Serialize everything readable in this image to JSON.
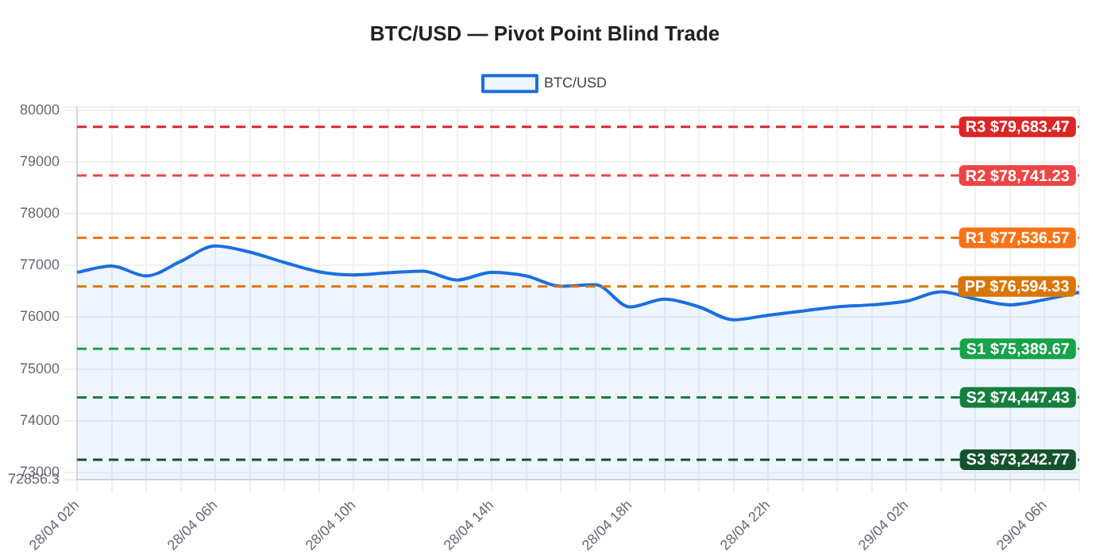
{
  "chart_data": {
    "type": "area",
    "title": "BTC/USD — Pivot Point Blind Trade",
    "categories": [
      "28/04 02h",
      null,
      null,
      null,
      "28/04 06h",
      null,
      null,
      null,
      "28/04 10h",
      null,
      null,
      null,
      "28/04 14h",
      null,
      null,
      null,
      "28/04 18h",
      null,
      null,
      null,
      "28/04 22h",
      null,
      null,
      null,
      "29/04 02h",
      null,
      null,
      null,
      "29/04 06h",
      null
    ],
    "series": [
      {
        "name": "BTC/USD",
        "color": "#1a6fe0",
        "values": [
          76870,
          76990,
          76800,
          77080,
          77380,
          77260,
          77060,
          76880,
          76820,
          76860,
          76890,
          76720,
          76870,
          76800,
          76600,
          76630,
          76200,
          76350,
          76200,
          75950,
          76040,
          76120,
          76200,
          76240,
          76310,
          76490,
          76350,
          76240,
          76340,
          76480
        ]
      }
    ],
    "ylim": [
      72856.3,
      80060.9
    ],
    "yticks": [
      72856.3,
      73000,
      74000,
      75000,
      76000,
      77000,
      78000,
      79000,
      80000,
      {
        "value": 80060.9,
        "label": null
      }
    ],
    "ref_lines": [
      {
        "axis": "y",
        "value": 79683.47,
        "label": "R3 $79,683.47",
        "color": "#dc2626",
        "line_style": "dashed"
      },
      {
        "axis": "y",
        "value": 78741.23,
        "label": "R2 $78,741.23",
        "color": "#ef4444",
        "line_style": "dashed"
      },
      {
        "axis": "y",
        "value": 77536.57,
        "label": "R1 $77,536.57",
        "color": "#f97316",
        "line_style": "dashed"
      },
      {
        "axis": "y",
        "value": 76594.33,
        "label": "PP $76,594.33",
        "color": "#d97706",
        "line_style": "dashed"
      },
      {
        "axis": "y",
        "value": 75389.67,
        "label": "S1 $75,389.67",
        "color": "#16a34a",
        "line_style": "dashed"
      },
      {
        "axis": "y",
        "value": 74447.43,
        "label": "S2 $74,447.43",
        "color": "#15803d",
        "line_style": "dashed"
      },
      {
        "axis": "y",
        "value": 73242.77,
        "label": "S3 $73,242.77",
        "color": "#14532d",
        "line_style": "dashed"
      }
    ],
    "grid": true,
    "legend": "top",
    "marker": "none",
    "line_style": "solid"
  }
}
